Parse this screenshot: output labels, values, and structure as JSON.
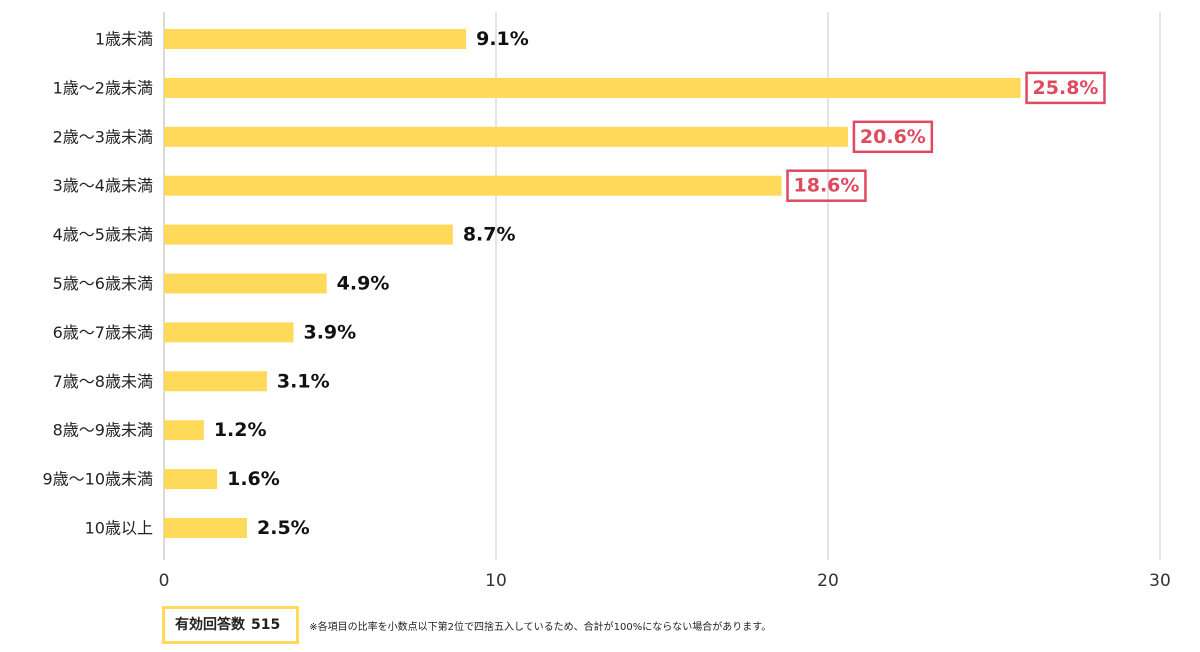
{
  "chart_data": {
    "type": "bar",
    "orientation": "horizontal",
    "categories": [
      "1歳未満",
      "1歳〜2歳未満",
      "2歳〜3歳未満",
      "3歳〜4歳未満",
      "4歳〜5歳未満",
      "5歳〜6歳未満",
      "6歳〜7歳未満",
      "7歳〜8歳未満",
      "8歳〜9歳未満",
      "9歳〜10歳未満",
      "10歳以上"
    ],
    "values": [
      9.1,
      25.8,
      20.6,
      18.6,
      8.7,
      4.9,
      3.9,
      3.1,
      1.2,
      1.6,
      2.5
    ],
    "value_labels": [
      "9.1%",
      "25.8%",
      "20.6%",
      "18.6%",
      "8.7%",
      "4.9%",
      "3.9%",
      "3.1%",
      "1.2%",
      "1.6%",
      "2.5%"
    ],
    "highlighted": [
      false,
      true,
      true,
      true,
      false,
      false,
      false,
      false,
      false,
      false,
      false
    ],
    "xticks": [
      0,
      10,
      20,
      30
    ],
    "xlim": [
      0,
      30
    ],
    "grid": true,
    "bar_color": "#ffd95a",
    "highlight_color": "#e04a5f"
  },
  "footer": {
    "responses_label": "有効回答数",
    "responses_count": "515",
    "note": "※各項目の比率を小数点以下第2位で四捨五入しているため、合計が100%にならない場合があります。"
  }
}
